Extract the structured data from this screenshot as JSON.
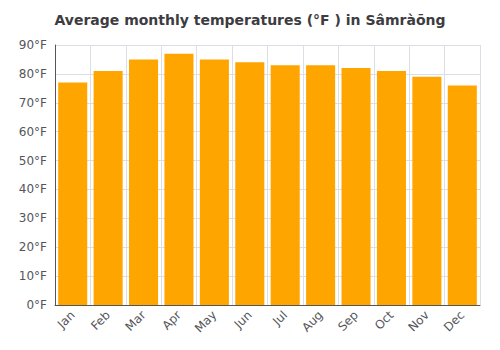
{
  "chart_data": {
    "type": "bar",
    "title": "Average monthly temperatures (°F ) in Sâmràōng",
    "categories": [
      "Jan",
      "Feb",
      "Mar",
      "Apr",
      "May",
      "Jun",
      "Jul",
      "Aug",
      "Sep",
      "Oct",
      "Nov",
      "Dec"
    ],
    "values": [
      77,
      81,
      85,
      87,
      85,
      84,
      83,
      83,
      82,
      81,
      79,
      76
    ],
    "color": "#FFA500",
    "ylim": [
      0,
      90
    ],
    "yticks": [
      {
        "value": 0,
        "label": "0°F"
      },
      {
        "value": 10,
        "label": "10°F"
      },
      {
        "value": 20,
        "label": "20°F"
      },
      {
        "value": 30,
        "label": "30°F"
      },
      {
        "value": 40,
        "label": "40°F"
      },
      {
        "value": 50,
        "label": "50°F"
      },
      {
        "value": 60,
        "label": "60°F"
      },
      {
        "value": 70,
        "label": "70°F"
      },
      {
        "value": 80,
        "label": "80°F"
      },
      {
        "value": 90,
        "label": "90°F"
      }
    ],
    "grid": true
  }
}
